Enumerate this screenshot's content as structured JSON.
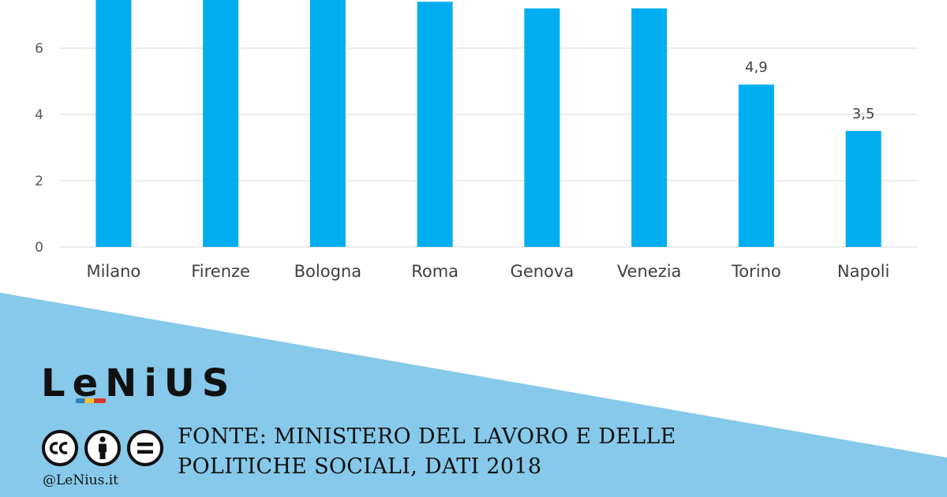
{
  "chart_data": {
    "type": "bar",
    "categories": [
      "Milano",
      "Firenze",
      "Bologna",
      "Roma",
      "Genova",
      "Venezia",
      "Torino",
      "Napoli"
    ],
    "values": [
      8.0,
      8.0,
      8.0,
      7.4,
      7.2,
      7.2,
      4.9,
      3.5
    ],
    "data_labels": [
      "",
      "",
      "",
      "",
      "",
      "",
      "4,9",
      "3,5"
    ],
    "y_ticks": [
      "0",
      "2",
      "4",
      "6"
    ],
    "ylim": [
      0,
      8
    ],
    "grid": true,
    "bar_color": "#00aeef",
    "grid_color": "#d9d9d9"
  },
  "branding": {
    "logo_text": "LeNiUS",
    "handle": "@LeNius.it",
    "license_icons": [
      "cc-icon",
      "by-person-icon",
      "nd-equals-icon"
    ],
    "band_color": "#87c9ea"
  },
  "source": {
    "line1": "FONTE: MINISTERO DEL LAVORO E DELLE",
    "line2": "POLITICHE SOCIALI, DATI 2018"
  }
}
